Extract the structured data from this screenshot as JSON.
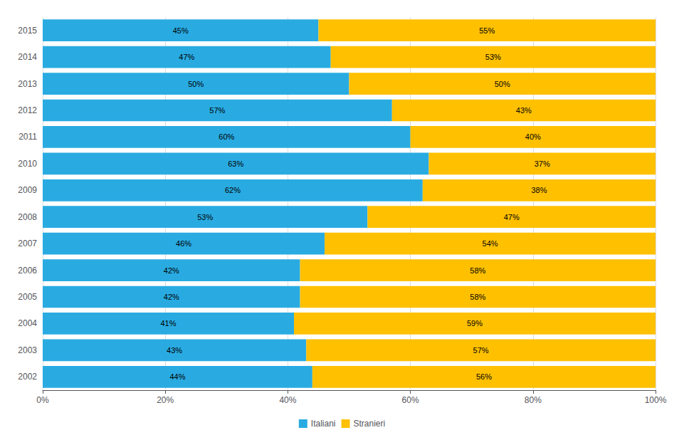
{
  "chart_data": {
    "type": "bar",
    "orientation": "horizontal",
    "stacked": true,
    "data_labels": true,
    "grid": true,
    "legend": "bottom",
    "categories": [
      "2002",
      "2003",
      "2004",
      "2005",
      "2006",
      "2007",
      "2008",
      "2009",
      "2010",
      "2011",
      "2012",
      "2013",
      "2014",
      "2015"
    ],
    "series": [
      {
        "name": "Italiani",
        "color": "#29ABE2",
        "values": [
          44,
          43,
          41,
          42,
          42,
          46,
          53,
          62,
          63,
          60,
          57,
          50,
          47,
          45
        ],
        "value_labels": [
          "44%",
          "43%",
          "41%",
          "42%",
          "42%",
          "46%",
          "53%",
          "62%",
          "63%",
          "60%",
          "57%",
          "50%",
          "47%",
          "45%"
        ]
      },
      {
        "name": "Stranieri",
        "color": "#FFC000",
        "values": [
          56,
          57,
          59,
          58,
          58,
          54,
          47,
          38,
          37,
          40,
          43,
          50,
          53,
          55
        ],
        "value_labels": [
          "56%",
          "57%",
          "59%",
          "58%",
          "58%",
          "54%",
          "47%",
          "38%",
          "37%",
          "40%",
          "43%",
          "50%",
          "53%",
          "55%"
        ]
      }
    ],
    "xlim": [
      0,
      100
    ],
    "xticks": [
      {
        "value": 0,
        "label": "0%"
      },
      {
        "value": 20,
        "label": "20%"
      },
      {
        "value": 40,
        "label": "40%"
      },
      {
        "value": 60,
        "label": "60%"
      },
      {
        "value": 80,
        "label": "80%"
      },
      {
        "value": 100,
        "label": "100%"
      }
    ]
  }
}
